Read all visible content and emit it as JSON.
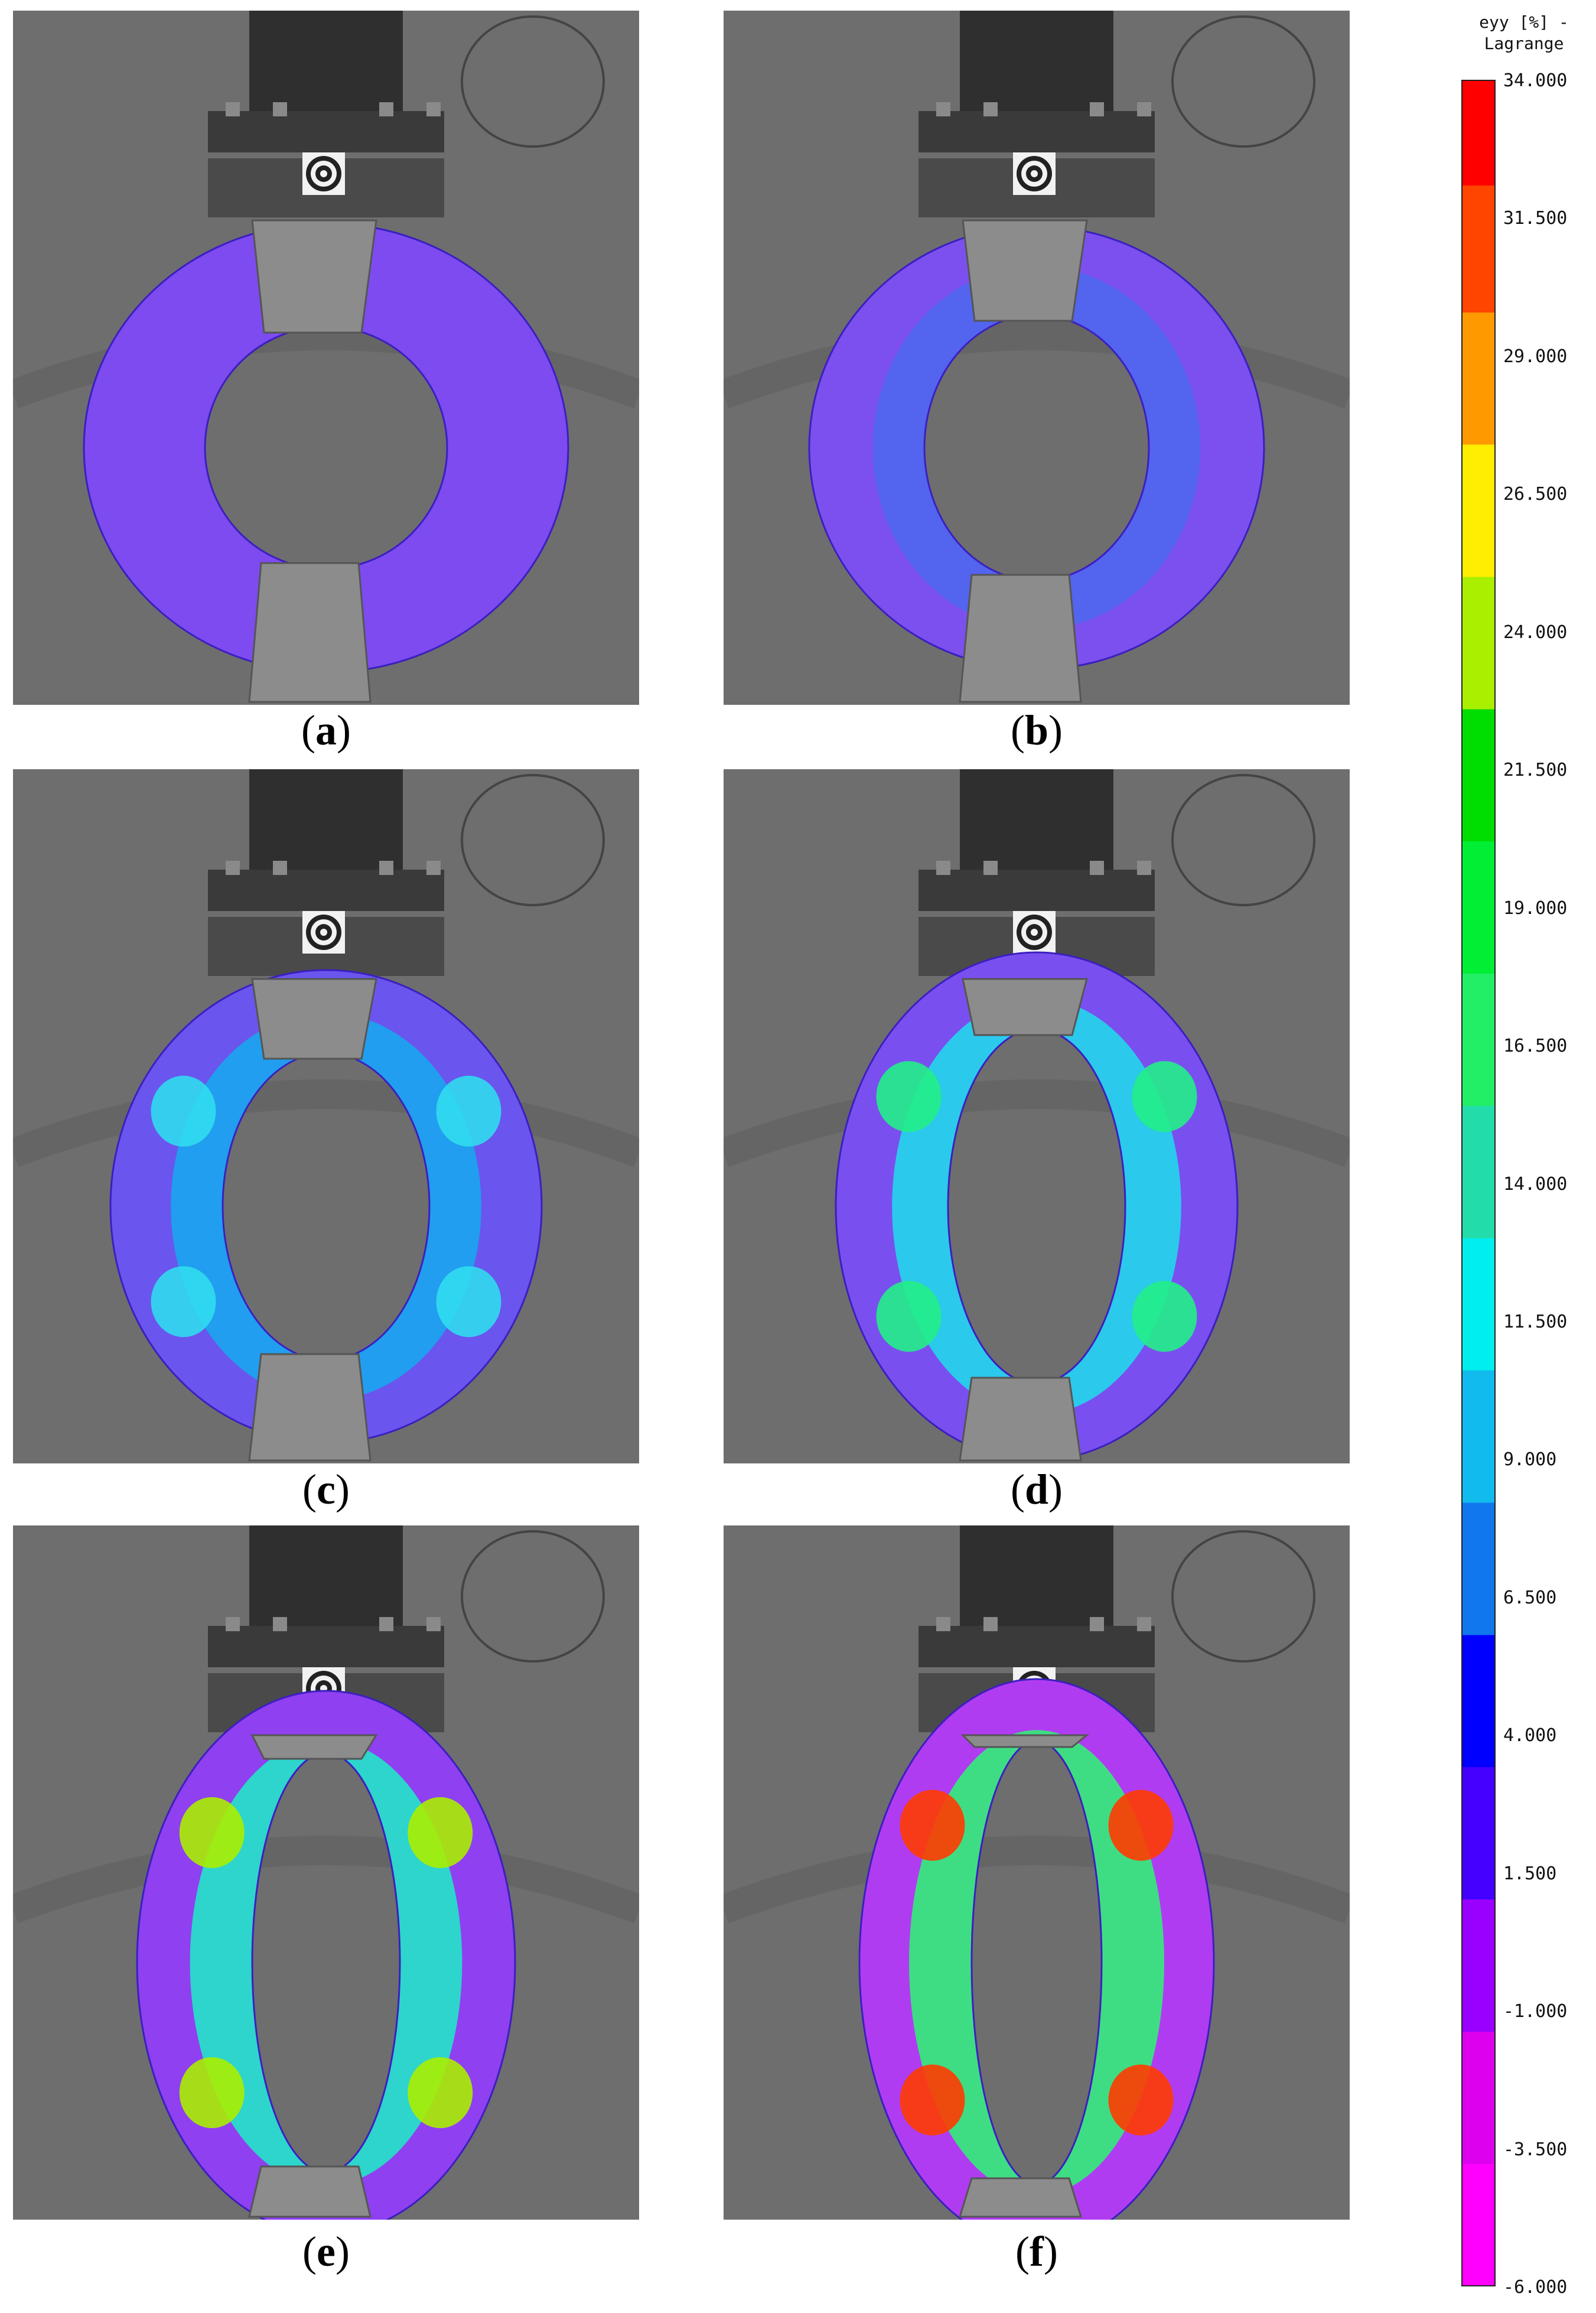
{
  "panels": [
    {
      "label": "a"
    },
    {
      "label": "b"
    },
    {
      "label": "c"
    },
    {
      "label": "d"
    },
    {
      "label": "e"
    },
    {
      "label": "f"
    }
  ],
  "legend": {
    "title_line1": "eyy [%] -",
    "title_line2": "Lagrange",
    "ticks": [
      "34.000",
      "31.500",
      "29.000",
      "26.500",
      "24.000",
      "21.500",
      "19.000",
      "16.500",
      "14.000",
      "11.500",
      "9.000",
      "6.500",
      "4.000",
      "1.500",
      "-1.000",
      "-3.500",
      "-6.000"
    ]
  }
}
